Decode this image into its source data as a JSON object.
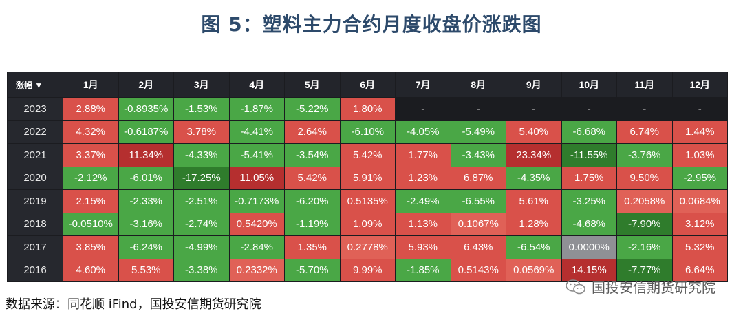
{
  "title": "图 5：塑料主力合约月度收盘价涨跌图",
  "source": "数据来源：同花顺 iFind，国投安信期货研究院",
  "watermark": "国投安信期货研究院",
  "colors": {
    "strong_red": "#b52f2f",
    "red": "#d9514a",
    "light_red": "#e06157",
    "green": "#4aa746",
    "dark_green": "#2f7c2c",
    "zero": "#8f9095",
    "header_bg": "#23252b",
    "bg": "#1b1c20"
  },
  "chart_data": {
    "type": "heatmap",
    "corner_label": "涨幅 ▼",
    "columns": [
      "1月",
      "2月",
      "3月",
      "4月",
      "5月",
      "6月",
      "7月",
      "8月",
      "9月",
      "10月",
      "11月",
      "12月"
    ],
    "rows": [
      {
        "year": "2023",
        "cells": [
          "2.88%",
          "-0.8935%",
          "-1.53%",
          "-1.87%",
          "-5.22%",
          "1.80%",
          "-",
          "-",
          "-",
          "-",
          "-",
          "-"
        ],
        "values": [
          2.88,
          -0.8935,
          -1.53,
          -1.87,
          -5.22,
          1.8,
          null,
          null,
          null,
          null,
          null,
          null
        ]
      },
      {
        "year": "2022",
        "cells": [
          "4.32%",
          "-0.6187%",
          "3.78%",
          "-4.41%",
          "2.64%",
          "-6.10%",
          "-4.05%",
          "-5.49%",
          "5.40%",
          "-6.68%",
          "6.74%",
          "1.44%"
        ],
        "values": [
          4.32,
          -0.6187,
          3.78,
          -4.41,
          2.64,
          -6.1,
          -4.05,
          -5.49,
          5.4,
          -6.68,
          6.74,
          1.44
        ]
      },
      {
        "year": "2021",
        "cells": [
          "3.37%",
          "11.34%",
          "-4.33%",
          "-5.41%",
          "-3.54%",
          "5.42%",
          "1.77%",
          "-3.43%",
          "23.34%",
          "-11.55%",
          "-3.76%",
          "1.03%"
        ],
        "values": [
          3.37,
          11.34,
          -4.33,
          -5.41,
          -3.54,
          5.42,
          1.77,
          -3.43,
          23.34,
          -11.55,
          -3.76,
          1.03
        ]
      },
      {
        "year": "2020",
        "cells": [
          "-2.12%",
          "-6.01%",
          "-17.25%",
          "11.05%",
          "5.42%",
          "5.91%",
          "1.23%",
          "6.87%",
          "-4.35%",
          "1.75%",
          "9.50%",
          "-2.95%"
        ],
        "values": [
          -2.12,
          -6.01,
          -17.25,
          11.05,
          5.42,
          5.91,
          1.23,
          6.87,
          -4.35,
          1.75,
          9.5,
          -2.95
        ]
      },
      {
        "year": "2019",
        "cells": [
          "2.15%",
          "-2.33%",
          "-2.51%",
          "-0.7173%",
          "-6.20%",
          "0.5135%",
          "-2.49%",
          "-6.55%",
          "5.61%",
          "-3.25%",
          "0.2058%",
          "0.0684%"
        ],
        "values": [
          2.15,
          -2.33,
          -2.51,
          -0.7173,
          -6.2,
          0.5135,
          -2.49,
          -6.55,
          5.61,
          -3.25,
          0.2058,
          0.0684
        ]
      },
      {
        "year": "2018",
        "cells": [
          "-0.0510%",
          "-3.16%",
          "-2.74%",
          "0.5420%",
          "-1.19%",
          "1.09%",
          "1.13%",
          "0.1067%",
          "1.28%",
          "-4.68%",
          "-7.90%",
          "3.12%"
        ],
        "values": [
          -0.051,
          -3.16,
          -2.74,
          0.542,
          -1.19,
          1.09,
          1.13,
          0.1067,
          1.28,
          -4.68,
          -7.9,
          3.12
        ]
      },
      {
        "year": "2017",
        "cells": [
          "3.85%",
          "-6.24%",
          "-4.99%",
          "-2.84%",
          "1.35%",
          "0.2778%",
          "5.93%",
          "6.43%",
          "-6.54%",
          "0.0000%",
          "-2.16%",
          "5.32%"
        ],
        "values": [
          3.85,
          -6.24,
          -4.99,
          -2.84,
          1.35,
          0.2778,
          5.93,
          6.43,
          -6.54,
          0.0,
          -2.16,
          5.32
        ]
      },
      {
        "year": "2016",
        "cells": [
          "4.60%",
          "5.53%",
          "-3.38%",
          "0.2332%",
          "-5.70%",
          "9.99%",
          "-1.85%",
          "0.5143%",
          "0.0569%",
          "14.15%",
          "-7.77%",
          "6.64%"
        ],
        "values": [
          4.6,
          5.53,
          -3.38,
          0.2332,
          -5.7,
          9.99,
          -1.85,
          0.5143,
          0.0569,
          14.15,
          -7.77,
          6.64
        ]
      }
    ]
  }
}
